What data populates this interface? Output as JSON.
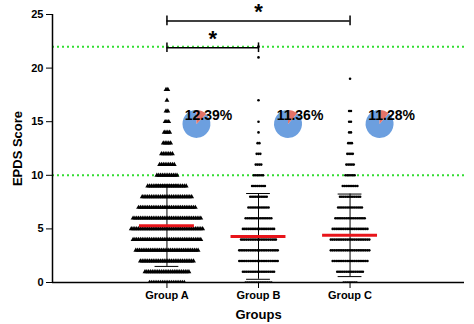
{
  "chart_data": {
    "type": "scatter",
    "x_label": "Groups",
    "y_label": "EPDS Score",
    "categories": [
      "Group A",
      "Group B",
      "Group C"
    ],
    "ylim": [
      0,
      25
    ],
    "yticks": [
      0,
      5,
      10,
      15,
      20,
      25
    ],
    "series": [
      {
        "name": "Group A",
        "color": "#000000",
        "marker": "triangle",
        "scores": [
          0,
          1,
          2,
          3,
          4,
          5,
          6,
          7,
          8,
          9,
          10,
          11,
          12,
          13,
          14,
          15,
          16,
          17,
          18
        ],
        "counts": [
          20,
          25,
          30,
          35,
          38,
          40,
          38,
          32,
          28,
          22,
          12,
          9,
          7,
          5,
          4,
          3,
          2,
          1,
          2
        ],
        "mean": 5.3,
        "sd": 3.8
      },
      {
        "name": "Group B",
        "color": "#000000",
        "marker": "circle",
        "scores": [
          0,
          1,
          2,
          3,
          4,
          5,
          6,
          7,
          8,
          9,
          10,
          11,
          12,
          13,
          14,
          15,
          17,
          21,
          22
        ],
        "counts": [
          15,
          18,
          22,
          22,
          20,
          18,
          15,
          12,
          10,
          8,
          6,
          4,
          3,
          2,
          1,
          1,
          1,
          1,
          1
        ],
        "mean": 4.3,
        "sd": 4.0
      },
      {
        "name": "Group C",
        "color": "#000000",
        "marker": "circle",
        "scores": [
          0,
          1,
          2,
          3,
          4,
          5,
          6,
          7,
          8,
          9,
          10,
          11,
          12,
          13,
          14,
          15,
          16,
          19
        ],
        "counts": [
          8,
          15,
          20,
          22,
          22,
          20,
          17,
          14,
          12,
          9,
          6,
          5,
          4,
          3,
          2,
          2,
          2,
          1
        ],
        "mean": 4.4,
        "sd": 3.85
      }
    ],
    "mean_color": "#e8141a",
    "reference_lines": {
      "values": [
        10,
        22
      ],
      "color": "#33dd33",
      "line_style": "dotted"
    },
    "significance": [
      {
        "from": "Group A",
        "to": "Group B",
        "label": "*"
      },
      {
        "from": "Group A",
        "to": "Group C",
        "label": "*"
      }
    ],
    "pies": {
      "type": "pie",
      "values": [
        12.39,
        11.36,
        11.28
      ],
      "value_labels": [
        "12.39%",
        "11.36%",
        "11.28%"
      ],
      "colors": [
        "#e57368",
        "#6c9fdf"
      ]
    }
  }
}
